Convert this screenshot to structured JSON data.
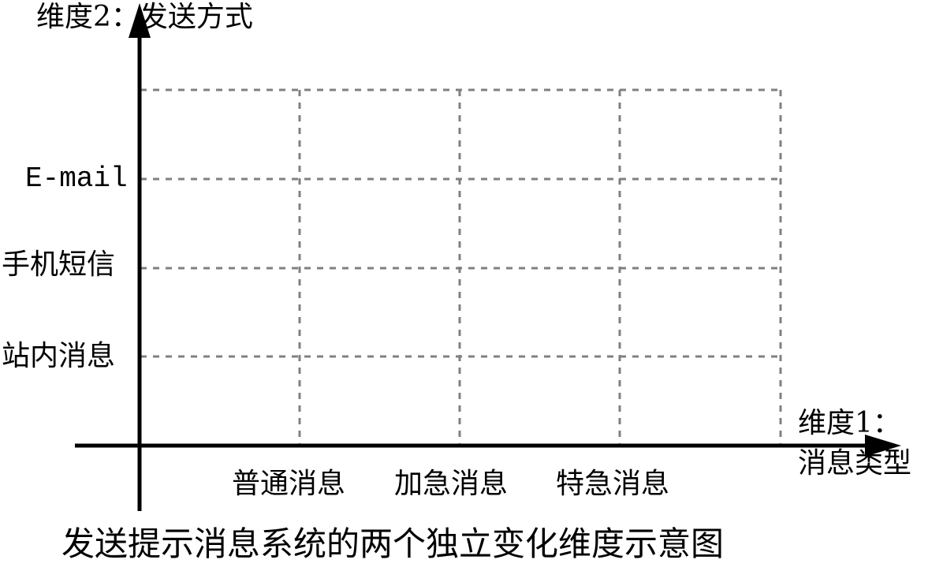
{
  "y_axis": {
    "title": "维度2：发送方式",
    "items": [
      "E-mail",
      "手机短信",
      "站内消息"
    ]
  },
  "x_axis": {
    "title_line1": "维度1：",
    "title_line2": "消息类型",
    "items": [
      "普通消息",
      "加急消息",
      "特急消息"
    ]
  },
  "caption": "发送提示消息系统的两个独立变化维度示意图",
  "colors": {
    "axis": "#000000",
    "grid": "#808080",
    "text": "#000000",
    "background": "#ffffff"
  }
}
